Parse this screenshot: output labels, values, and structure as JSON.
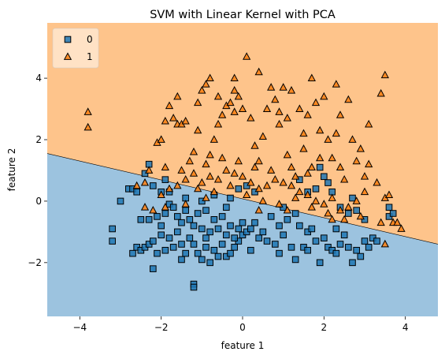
{
  "chart_data": {
    "type": "scatter",
    "title": "SVM with Linear Kernel with PCA",
    "xlabel": "feature 1",
    "ylabel": "feature 2",
    "xlim": [
      -4.8,
      4.8
    ],
    "ylim": [
      -3.75,
      5.8
    ],
    "xticks": [
      -4,
      -2,
      0,
      2,
      4
    ],
    "yticks": [
      -2,
      0,
      2,
      4
    ],
    "grid": false,
    "legend": {
      "position": "top-left",
      "entries": [
        "0",
        "1"
      ]
    },
    "decision_boundary": {
      "x": [
        -4.8,
        4.8
      ],
      "y": [
        1.55,
        -1.4
      ]
    },
    "regions": [
      {
        "class": "0",
        "color": "#9cc3df",
        "side": "below"
      },
      {
        "class": "1",
        "color": "#fec48b",
        "side": "above"
      }
    ],
    "series": [
      {
        "name": "0",
        "marker": "square",
        "color": "#1f77b4",
        "points": [
          [
            -3.2,
            -0.9
          ],
          [
            -3.2,
            -1.3
          ],
          [
            -3.0,
            0.0
          ],
          [
            -2.8,
            0.4
          ],
          [
            -2.7,
            0.4
          ],
          [
            -2.6,
            0.3
          ],
          [
            -2.4,
            0.9
          ],
          [
            -2.3,
            1.2
          ],
          [
            -2.2,
            0.5
          ],
          [
            -2.0,
            0.3
          ],
          [
            -1.9,
            0.7
          ],
          [
            -1.8,
            0.3
          ],
          [
            -2.7,
            -1.7
          ],
          [
            -2.6,
            -1.5
          ],
          [
            -2.5,
            -1.6
          ],
          [
            -2.4,
            -1.5
          ],
          [
            -2.3,
            -1.4
          ],
          [
            -2.2,
            -1.3
          ],
          [
            -2.1,
            -1.7
          ],
          [
            -2.2,
            -2.2
          ],
          [
            -1.9,
            -1.6
          ],
          [
            -1.8,
            -1.2
          ],
          [
            -1.7,
            -1.5
          ],
          [
            -1.6,
            -1.0
          ],
          [
            -1.5,
            -1.4
          ],
          [
            -1.4,
            -1.7
          ],
          [
            -1.3,
            -1.2
          ],
          [
            -1.2,
            -1.4
          ],
          [
            -1.2,
            -2.7
          ],
          [
            -1.2,
            -2.8
          ],
          [
            -1.1,
            -1.7
          ],
          [
            -1.0,
            -1.9
          ],
          [
            -0.9,
            -1.5
          ],
          [
            -0.8,
            -2.0
          ],
          [
            -0.7,
            -1.6
          ],
          [
            -0.6,
            -1.8
          ],
          [
            -0.5,
            -1.4
          ],
          [
            -0.4,
            -1.8
          ],
          [
            -0.3,
            -1.7
          ],
          [
            -0.2,
            -1.5
          ],
          [
            -0.1,
            -1.3
          ],
          [
            0.0,
            -1.1
          ],
          [
            0.1,
            -1.0
          ],
          [
            0.2,
            -0.9
          ],
          [
            0.3,
            -0.7
          ],
          [
            -2.3,
            -0.6
          ],
          [
            -2.1,
            -0.5
          ],
          [
            -2.0,
            -0.8
          ],
          [
            -1.9,
            -0.4
          ],
          [
            -1.8,
            -0.1
          ],
          [
            -1.7,
            -0.2
          ],
          [
            -1.6,
            -0.5
          ],
          [
            -1.5,
            -0.7
          ],
          [
            -1.4,
            -0.3
          ],
          [
            -1.3,
            -0.6
          ],
          [
            -1.2,
            -0.8
          ],
          [
            -1.1,
            -0.4
          ],
          [
            -1.0,
            -0.9
          ],
          [
            -0.9,
            -0.3
          ],
          [
            -0.8,
            -1.0
          ],
          [
            -0.7,
            -0.6
          ],
          [
            -0.6,
            -0.9
          ],
          [
            -0.5,
            -0.5
          ],
          [
            -0.4,
            -1.1
          ],
          [
            -0.3,
            -0.8
          ],
          [
            -0.2,
            -1.2
          ],
          [
            -0.1,
            -0.9
          ],
          [
            0.0,
            -0.7
          ],
          [
            0.4,
            -1.2
          ],
          [
            0.5,
            -1.0
          ],
          [
            0.6,
            -1.3
          ],
          [
            0.8,
            -1.4
          ],
          [
            0.9,
            -0.8
          ],
          [
            1.0,
            -1.1
          ],
          [
            1.1,
            -0.6
          ],
          [
            1.2,
            -1.5
          ],
          [
            1.3,
            -1.9
          ],
          [
            1.4,
            -0.8
          ],
          [
            1.5,
            -1.5
          ],
          [
            1.6,
            -1.0
          ],
          [
            1.7,
            -0.9
          ],
          [
            1.8,
            -1.3
          ],
          [
            1.9,
            -2.0
          ],
          [
            2.0,
            -1.2
          ],
          [
            2.1,
            -1.5
          ],
          [
            2.2,
            -1.6
          ],
          [
            2.3,
            -0.9
          ],
          [
            2.4,
            -1.4
          ],
          [
            2.5,
            -1.1
          ],
          [
            2.6,
            -1.5
          ],
          [
            2.7,
            -2.0
          ],
          [
            2.8,
            -1.6
          ],
          [
            2.9,
            -1.8
          ],
          [
            3.0,
            -1.3
          ],
          [
            3.1,
            -1.5
          ],
          [
            3.2,
            -1.2
          ],
          [
            3.3,
            -1.3
          ],
          [
            3.6,
            -0.2
          ],
          [
            3.6,
            -0.5
          ],
          [
            3.7,
            -0.4
          ],
          [
            1.4,
            0.7
          ],
          [
            1.6,
            0.3
          ],
          [
            1.8,
            0.4
          ],
          [
            1.9,
            1.1
          ],
          [
            2.0,
            0.8
          ],
          [
            2.1,
            0.6
          ],
          [
            2.2,
            0.3
          ],
          [
            2.4,
            -0.2
          ],
          [
            2.6,
            -0.4
          ],
          [
            2.7,
            0.1
          ],
          [
            2.8,
            -0.3
          ],
          [
            3.0,
            -0.6
          ],
          [
            -0.3,
            0.1
          ],
          [
            -0.1,
            0.4
          ],
          [
            0.1,
            0.5
          ],
          [
            0.3,
            0.3
          ],
          [
            -1.4,
            0.1
          ],
          [
            -1.0,
            0.0
          ],
          [
            -0.7,
            0.2
          ],
          [
            1.0,
            -0.2
          ],
          [
            0.7,
            -0.5
          ],
          [
            1.3,
            -0.4
          ],
          [
            -1.5,
            -1.9
          ],
          [
            -0.9,
            -1.2
          ],
          [
            0.2,
            -1.6
          ],
          [
            0.9,
            -1.7
          ],
          [
            1.6,
            -1.6
          ],
          [
            2.3,
            -1.7
          ],
          [
            -2.5,
            -0.6
          ],
          [
            -2.0,
            -1.1
          ],
          [
            -0.4,
            -0.2
          ]
        ]
      },
      {
        "name": "1",
        "marker": "triangle",
        "color": "#ff7f0e",
        "points": [
          [
            -3.8,
            2.4
          ],
          [
            -3.8,
            2.9
          ],
          [
            -2.1,
            1.9
          ],
          [
            -2.0,
            2.0
          ],
          [
            -1.9,
            2.6
          ],
          [
            -1.8,
            3.1
          ],
          [
            -1.7,
            2.7
          ],
          [
            -1.6,
            2.5
          ],
          [
            -1.5,
            2.5
          ],
          [
            -1.4,
            2.6
          ],
          [
            -1.2,
            1.6
          ],
          [
            -1.1,
            2.3
          ],
          [
            -1.0,
            3.6
          ],
          [
            -0.9,
            3.8
          ],
          [
            -0.8,
            1.5
          ],
          [
            -0.7,
            2.0
          ],
          [
            -0.6,
            2.5
          ],
          [
            -0.5,
            2.8
          ],
          [
            -0.4,
            3.1
          ],
          [
            -0.3,
            3.2
          ],
          [
            -0.2,
            2.9
          ],
          [
            -0.1,
            3.4
          ],
          [
            0.0,
            3.0
          ],
          [
            0.1,
            4.7
          ],
          [
            -0.2,
            4.0
          ],
          [
            0.3,
            1.8
          ],
          [
            0.4,
            1.3
          ],
          [
            0.5,
            2.1
          ],
          [
            0.6,
            3.0
          ],
          [
            0.7,
            3.7
          ],
          [
            0.8,
            3.3
          ],
          [
            0.9,
            2.5
          ],
          [
            1.0,
            3.7
          ],
          [
            1.1,
            2.7
          ],
          [
            1.2,
            1.1
          ],
          [
            1.3,
            0.8
          ],
          [
            1.4,
            3.0
          ],
          [
            1.5,
            2.2
          ],
          [
            1.6,
            0.9
          ],
          [
            1.7,
            1.1
          ],
          [
            1.8,
            3.2
          ],
          [
            1.9,
            2.3
          ],
          [
            2.0,
            3.4
          ],
          [
            2.1,
            2.0
          ],
          [
            2.2,
            1.4
          ],
          [
            2.3,
            2.2
          ],
          [
            2.4,
            1.1
          ],
          [
            2.5,
            0.7
          ],
          [
            2.6,
            3.3
          ],
          [
            2.7,
            2.0
          ],
          [
            2.8,
            1.3
          ],
          [
            2.9,
            1.7
          ],
          [
            3.0,
            0.8
          ],
          [
            3.1,
            1.2
          ],
          [
            3.3,
            0.6
          ],
          [
            3.4,
            3.5
          ],
          [
            3.5,
            4.1
          ],
          [
            3.5,
            0.1
          ],
          [
            3.6,
            0.2
          ],
          [
            3.7,
            -0.7
          ],
          [
            3.8,
            -0.7
          ],
          [
            3.9,
            -0.9
          ],
          [
            3.4,
            -0.7
          ],
          [
            3.5,
            -1.4
          ],
          [
            3.0,
            0.3
          ],
          [
            2.8,
            0.0
          ],
          [
            2.6,
            -0.2
          ],
          [
            2.4,
            -0.3
          ],
          [
            2.2,
            0.1
          ],
          [
            2.0,
            -0.1
          ],
          [
            1.8,
            0.0
          ],
          [
            1.6,
            0.2
          ],
          [
            1.4,
            0.3
          ],
          [
            1.2,
            0.5
          ],
          [
            1.0,
            0.6
          ],
          [
            0.8,
            0.7
          ],
          [
            0.6,
            0.5
          ],
          [
            0.4,
            0.4
          ],
          [
            0.2,
            0.6
          ],
          [
            0.0,
            0.8
          ],
          [
            -0.2,
            0.9
          ],
          [
            -0.4,
            1.0
          ],
          [
            -0.6,
            0.7
          ],
          [
            -0.8,
            0.8
          ],
          [
            -1.0,
            0.6
          ],
          [
            -1.2,
            0.9
          ],
          [
            -1.4,
            0.7
          ],
          [
            -1.6,
            0.5
          ],
          [
            -1.8,
            0.4
          ],
          [
            -2.0,
            0.2
          ],
          [
            -2.2,
            -0.3
          ],
          [
            -2.4,
            0.6
          ],
          [
            -2.6,
            0.5
          ],
          [
            -1.3,
            1.3
          ],
          [
            -0.9,
            1.2
          ],
          [
            -0.5,
            1.4
          ],
          [
            -0.1,
            1.3
          ],
          [
            0.3,
            1.1
          ],
          [
            0.7,
            1.0
          ],
          [
            1.1,
            1.5
          ],
          [
            1.5,
            1.7
          ],
          [
            1.9,
            1.4
          ],
          [
            -2.3,
            1.0
          ],
          [
            -1.9,
            1.1
          ],
          [
            -1.5,
            1.0
          ],
          [
            -1.1,
            0.4
          ],
          [
            -0.7,
            0.3
          ],
          [
            -0.3,
            0.5
          ],
          [
            0.1,
            0.2
          ],
          [
            0.5,
            0.0
          ],
          [
            0.9,
            -0.1
          ],
          [
            1.3,
            0.1
          ],
          [
            1.7,
            -0.2
          ],
          [
            2.1,
            -0.4
          ],
          [
            2.5,
            -0.6
          ],
          [
            2.9,
            -0.5
          ],
          [
            -0.8,
            4.0
          ],
          [
            -0.2,
            3.6
          ],
          [
            0.4,
            4.2
          ],
          [
            1.2,
            3.6
          ],
          [
            1.7,
            4.0
          ],
          [
            2.3,
            3.8
          ],
          [
            -1.6,
            3.4
          ],
          [
            -1.1,
            3.2
          ],
          [
            -0.6,
            3.4
          ],
          [
            0.2,
            2.7
          ],
          [
            0.9,
            2.9
          ],
          [
            1.6,
            2.8
          ],
          [
            2.4,
            2.8
          ],
          [
            3.1,
            2.5
          ],
          [
            -2.4,
            -0.2
          ],
          [
            -1.9,
            -0.2
          ],
          [
            -1.4,
            -0.1
          ],
          [
            -0.9,
            0.1
          ],
          [
            0.4,
            -0.3
          ],
          [
            1.1,
            -0.3
          ],
          [
            2.2,
            -0.6
          ]
        ]
      }
    ]
  }
}
